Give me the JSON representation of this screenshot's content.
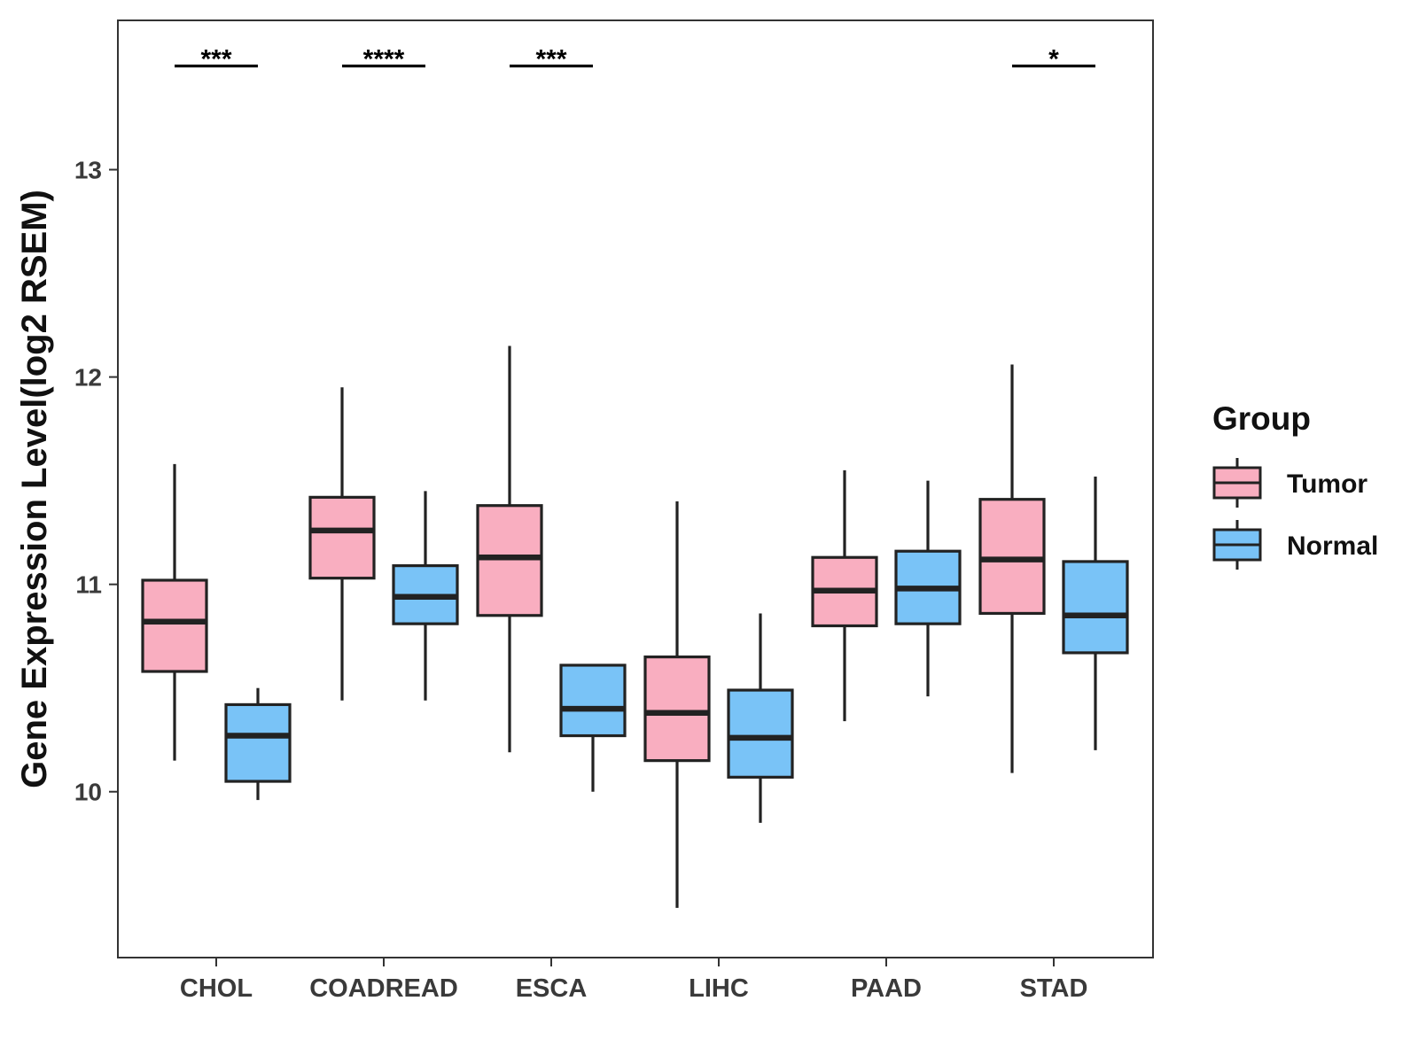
{
  "chart_data": {
    "type": "box",
    "ylabel": "Gene Expression Level(log2 RSEM)",
    "xlabel": "",
    "ylim": [
      9.2,
      13.72
    ],
    "yticks": [
      10,
      11,
      12,
      13
    ],
    "categories": [
      "CHOL",
      "COADREAD",
      "ESCA",
      "LIHC",
      "PAAD",
      "STAD"
    ],
    "series": [
      {
        "name": "Tumor",
        "color": "#f9aec0",
        "boxes": [
          {
            "category": "CHOL",
            "min": 10.15,
            "q1": 10.58,
            "median": 10.82,
            "q3": 11.02,
            "max": 11.58
          },
          {
            "category": "COADREAD",
            "min": 10.44,
            "q1": 11.03,
            "median": 11.26,
            "q3": 11.42,
            "max": 11.95
          },
          {
            "category": "ESCA",
            "min": 10.19,
            "q1": 10.85,
            "median": 11.13,
            "q3": 11.38,
            "max": 12.15
          },
          {
            "category": "LIHC",
            "min": 9.44,
            "q1": 10.15,
            "median": 10.38,
            "q3": 10.65,
            "max": 11.4
          },
          {
            "category": "PAAD",
            "min": 10.34,
            "q1": 10.8,
            "median": 10.97,
            "q3": 11.13,
            "max": 11.55
          },
          {
            "category": "STAD",
            "min": 10.09,
            "q1": 10.86,
            "median": 11.12,
            "q3": 11.41,
            "max": 12.06
          }
        ]
      },
      {
        "name": "Normal",
        "color": "#79c3f7",
        "boxes": [
          {
            "category": "CHOL",
            "min": 9.96,
            "q1": 10.05,
            "median": 10.27,
            "q3": 10.42,
            "max": 10.5
          },
          {
            "category": "COADREAD",
            "min": 10.44,
            "q1": 10.81,
            "median": 10.94,
            "q3": 11.09,
            "max": 11.45
          },
          {
            "category": "ESCA",
            "min": 10.0,
            "q1": 10.27,
            "median": 10.4,
            "q3": 10.61,
            "max": 10.61
          },
          {
            "category": "LIHC",
            "min": 9.85,
            "q1": 10.07,
            "median": 10.26,
            "q3": 10.49,
            "max": 10.86
          },
          {
            "category": "PAAD",
            "min": 10.46,
            "q1": 10.81,
            "median": 10.98,
            "q3": 11.16,
            "max": 11.5
          },
          {
            "category": "STAD",
            "min": 10.2,
            "q1": 10.67,
            "median": 10.85,
            "q3": 11.11,
            "max": 11.52
          }
        ]
      }
    ],
    "significance": [
      {
        "category": "CHOL",
        "label": "***"
      },
      {
        "category": "COADREAD",
        "label": "****"
      },
      {
        "category": "ESCA",
        "label": "***"
      },
      {
        "category": "STAD",
        "label": "*"
      }
    ],
    "significance_level": 13.5,
    "legend": {
      "title": "Group",
      "position": "right",
      "items": [
        "Tumor",
        "Normal"
      ]
    },
    "grid": false
  }
}
